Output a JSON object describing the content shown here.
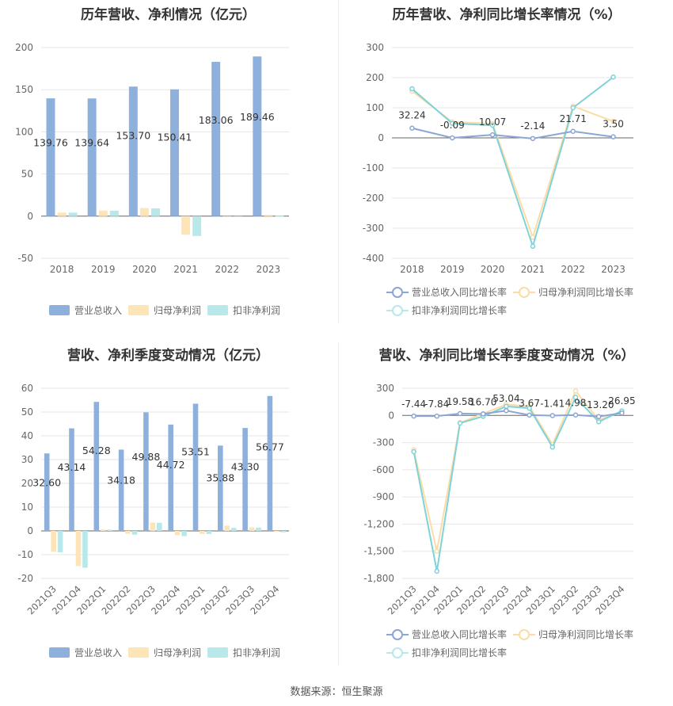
{
  "colors": {
    "revenue": "#8eb0dc",
    "netprofit": "#fde5b8",
    "deducted": "#b8e8ea",
    "revenue_line": "#8aa6d4",
    "netprofit_line": "#fcdca6",
    "deducted_line": "#7fd2d8"
  },
  "source_text": "数据来源：恒生聚源",
  "chart_data": [
    {
      "type": "bar",
      "title": "历年营收、净利情况（亿元）",
      "categories": [
        "2018",
        "2019",
        "2020",
        "2021",
        "2022",
        "2023"
      ],
      "series": [
        {
          "name": "营业总收入",
          "values": [
            139.76,
            139.64,
            153.7,
            150.41,
            183.06,
            189.46
          ],
          "labels": [
            "139.76",
            "139.64",
            "153.70",
            "150.41",
            "183.06",
            "189.46"
          ]
        },
        {
          "name": "归母净利润",
          "values": [
            4.3,
            6.6,
            9.6,
            -22.0,
            -1.2,
            1.4
          ]
        },
        {
          "name": "扣非净利润",
          "values": [
            4.2,
            6.5,
            9.2,
            -23.5,
            -0.8,
            0.3
          ]
        }
      ],
      "ylim": [
        -50,
        200
      ],
      "yticks": [
        -50,
        0,
        50,
        100,
        150,
        200
      ],
      "grid": true,
      "legend": "bottom"
    },
    {
      "type": "line",
      "title": "历年营收、净利同比增长率情况（%）",
      "categories": [
        "2018",
        "2019",
        "2020",
        "2021",
        "2022",
        "2023"
      ],
      "series": [
        {
          "name": "营业总收入同比增长率",
          "values": [
            32.24,
            -0.09,
            10.07,
            -2.14,
            21.71,
            3.5
          ],
          "labels": [
            "32.24",
            "-0.09",
            "10.07",
            "-2.14",
            "21.71",
            "3.50"
          ]
        },
        {
          "name": "归母净利润同比增长率",
          "values": [
            155,
            53,
            47,
            -330,
            105,
            55
          ]
        },
        {
          "name": "扣非净利润同比增长率",
          "values": [
            163,
            48,
            42,
            -360,
            100,
            202
          ]
        }
      ],
      "ylim": [
        -400,
        300
      ],
      "yticks": [
        -400,
        -300,
        -200,
        -100,
        0,
        100,
        200,
        300
      ],
      "grid": true,
      "legend": "bottom"
    },
    {
      "type": "bar",
      "title": "营收、净利季度变动情况（亿元）",
      "categories": [
        "2021Q3",
        "2021Q4",
        "2022Q1",
        "2022Q2",
        "2022Q3",
        "2022Q4",
        "2023Q1",
        "2023Q2",
        "2023Q3",
        "2023Q4"
      ],
      "series": [
        {
          "name": "营业总收入",
          "values": [
            32.6,
            43.14,
            54.28,
            34.18,
            49.88,
            44.72,
            53.51,
            35.88,
            43.3,
            56.77
          ],
          "labels": [
            "32.60",
            "43.14",
            "54.28",
            "34.18",
            "49.88",
            "44.72",
            "53.51",
            "35.88",
            "43.30",
            "56.77"
          ]
        },
        {
          "name": "归母净利润",
          "values": [
            -8.8,
            -14.8,
            0.6,
            -1.2,
            3.5,
            -1.8,
            -1.3,
            2.2,
            1.5,
            -0.4
          ]
        },
        {
          "name": "扣非净利润",
          "values": [
            -9.0,
            -15.5,
            0.5,
            -1.6,
            3.4,
            -2.2,
            -1.3,
            1.3,
            1.4,
            -0.6
          ]
        }
      ],
      "ylim": [
        -20,
        60
      ],
      "yticks": [
        -20,
        -10,
        0,
        10,
        20,
        30,
        40,
        50,
        60
      ],
      "grid": true,
      "legend": "bottom"
    },
    {
      "type": "line",
      "title": "营收、净利同比增长率季度变动情况（%）",
      "categories": [
        "2021Q3",
        "2021Q4",
        "2022Q1",
        "2022Q2",
        "2022Q3",
        "2022Q4",
        "2023Q1",
        "2023Q2",
        "2023Q3",
        "2023Q4"
      ],
      "series": [
        {
          "name": "营业总收入同比增长率",
          "values": [
            -7.44,
            -7.84,
            19.58,
            16.7,
            53.04,
            3.67,
            -1.41,
            4.98,
            -13.2,
            26.95
          ],
          "labels": [
            "-7.44",
            "-7.84",
            "19.58",
            "16.70",
            "53.04",
            "3.67",
            "-1.41",
            "4.98",
            "-13.20",
            "26.95"
          ]
        },
        {
          "name": "归母净利润同比增长率",
          "values": [
            -380,
            -1500,
            -80,
            20,
            120,
            100,
            -320,
            270,
            -50,
            40
          ]
        },
        {
          "name": "扣非净利润同比增长率",
          "values": [
            -400,
            -1720,
            -85,
            -10,
            100,
            80,
            -350,
            200,
            -70,
            50
          ]
        }
      ],
      "ylim": [
        -1800,
        300
      ],
      "yticks": [
        -1800,
        -1500,
        -1200,
        -900,
        -600,
        -300,
        0,
        300
      ],
      "ytick_labels": [
        "-1,800",
        "-1,500",
        "-1,200",
        "-900",
        "-600",
        "-300",
        "0",
        "300"
      ],
      "grid": true,
      "legend": "bottom"
    }
  ]
}
